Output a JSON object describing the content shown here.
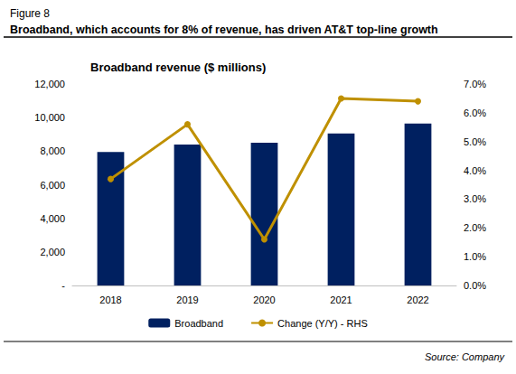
{
  "chart_data": {
    "type": "bar",
    "title": "Broadband, which accounts for 8% of revenue, has driven AT&T top-line growth",
    "subtitle": "Broadband revenue ($ millions)",
    "annotations": [
      "Figure 8",
      "Source: Company"
    ],
    "categories": [
      "2018",
      "2019",
      "2020",
      "2021",
      "2022"
    ],
    "series": [
      {
        "name": "Broadband",
        "type": "bar",
        "color": "#002060",
        "values": [
          7950,
          8400,
          8500,
          9050,
          9650
        ]
      },
      {
        "name": "Change (Y/Y) - RHS",
        "type": "line",
        "color": "#BF9000",
        "axis": "y2",
        "marker": "circle",
        "values": [
          3.7,
          5.6,
          1.6,
          6.5,
          6.4
        ]
      }
    ],
    "ylim": [
      0,
      12000
    ],
    "yticks": [
      {
        "value": 0,
        "label": "-"
      },
      {
        "value": 2000,
        "label": "2,000"
      },
      {
        "value": 4000,
        "label": "4,000"
      },
      {
        "value": 6000,
        "label": "6,000"
      },
      {
        "value": 8000,
        "label": "8,000"
      },
      {
        "value": 10000,
        "label": "10,000"
      },
      {
        "value": 12000,
        "label": "12,000"
      }
    ],
    "y2lim": [
      0,
      7
    ],
    "y2ticks": [
      {
        "value": 0,
        "label": "0.0%"
      },
      {
        "value": 1,
        "label": "1.0%"
      },
      {
        "value": 2,
        "label": "2.0%"
      },
      {
        "value": 3,
        "label": "3.0%"
      },
      {
        "value": 4,
        "label": "4.0%"
      },
      {
        "value": 5,
        "label": "5.0%"
      },
      {
        "value": 6,
        "label": "6.0%"
      },
      {
        "value": 7,
        "label": "7.0%"
      }
    ],
    "grid": false,
    "legend": "bottom"
  }
}
